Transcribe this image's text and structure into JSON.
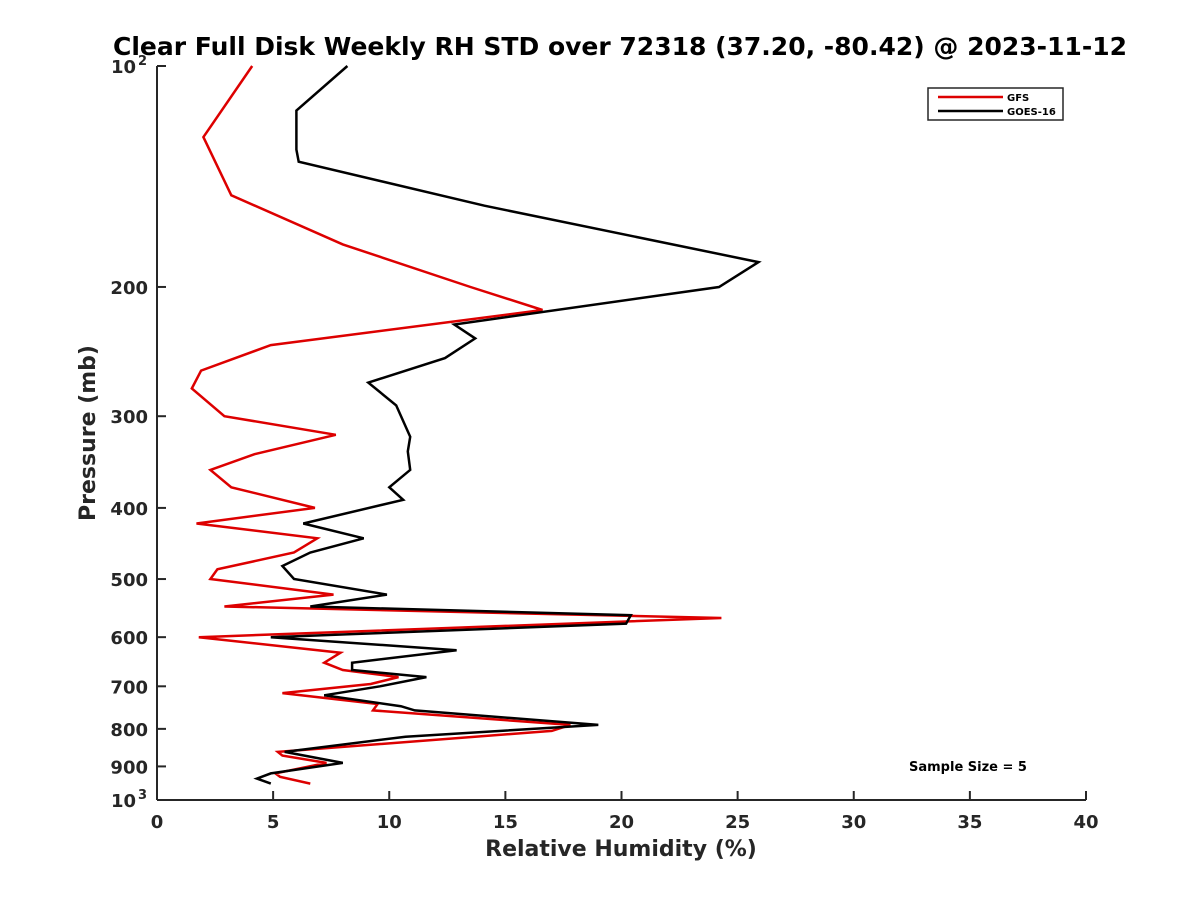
{
  "chart_data": {
    "type": "line",
    "title": "Clear Full Disk Weekly RH STD over 72318 (37.20, -80.42) @ 2023-11-12",
    "xlabel": "Relative Humidity (%)",
    "ylabel": "Pressure (mb)",
    "xlim": [
      0,
      40
    ],
    "ylim": [
      100,
      1000
    ],
    "yscale": "log",
    "yreversed": true,
    "grid": false,
    "legend_position": "top-right",
    "xticks": [
      0,
      5,
      10,
      15,
      20,
      25,
      30,
      35,
      40
    ],
    "xtick_labels": [
      "0",
      "5",
      "10",
      "15",
      "20",
      "25",
      "30",
      "35",
      "40"
    ],
    "yticks": [
      {
        "value": 100,
        "label": "10",
        "sup": "2"
      },
      {
        "value": 200,
        "label": "200",
        "sup": ""
      },
      {
        "value": 300,
        "label": "300",
        "sup": ""
      },
      {
        "value": 400,
        "label": "400",
        "sup": ""
      },
      {
        "value": 500,
        "label": "500",
        "sup": ""
      },
      {
        "value": 600,
        "label": "600",
        "sup": ""
      },
      {
        "value": 700,
        "label": "700",
        "sup": ""
      },
      {
        "value": 800,
        "label": "800",
        "sup": ""
      },
      {
        "value": 900,
        "label": "900",
        "sup": ""
      },
      {
        "value": 1000,
        "label": "10",
        "sup": "3"
      }
    ],
    "series": [
      {
        "name": "GFS",
        "color": "#dd0000",
        "points": [
          [
            4.1,
            100
          ],
          [
            2.0,
            125
          ],
          [
            3.2,
            150
          ],
          [
            8.0,
            175
          ],
          [
            13.5,
            200
          ],
          [
            16.6,
            215
          ],
          [
            4.9,
            240
          ],
          [
            1.9,
            260
          ],
          [
            1.5,
            275
          ],
          [
            2.9,
            300
          ],
          [
            7.7,
            318
          ],
          [
            4.2,
            338
          ],
          [
            2.3,
            355
          ],
          [
            3.2,
            375
          ],
          [
            6.8,
            400
          ],
          [
            1.7,
            420
          ],
          [
            6.9,
            440
          ],
          [
            5.9,
            460
          ],
          [
            2.6,
            485
          ],
          [
            2.3,
            500
          ],
          [
            7.6,
            525
          ],
          [
            2.9,
            545
          ],
          [
            24.3,
            565
          ],
          [
            1.8,
            600
          ],
          [
            7.9,
            630
          ],
          [
            7.2,
            650
          ],
          [
            8.0,
            665
          ],
          [
            10.4,
            680
          ],
          [
            9.2,
            695
          ],
          [
            5.4,
            715
          ],
          [
            9.5,
            740
          ],
          [
            9.3,
            755
          ],
          [
            17.8,
            790
          ],
          [
            17.0,
            805
          ],
          [
            5.2,
            860
          ],
          [
            5.4,
            870
          ],
          [
            7.3,
            890
          ],
          [
            5.1,
            920
          ],
          [
            5.3,
            930
          ],
          [
            6.6,
            950
          ]
        ]
      },
      {
        "name": "GOES-16",
        "color": "#000000",
        "points": [
          [
            8.2,
            100
          ],
          [
            6.0,
            115
          ],
          [
            6.0,
            130
          ],
          [
            6.1,
            135
          ],
          [
            14.1,
            155
          ],
          [
            25.9,
            185
          ],
          [
            24.2,
            200
          ],
          [
            12.8,
            225
          ],
          [
            13.7,
            235
          ],
          [
            12.4,
            250
          ],
          [
            9.1,
            270
          ],
          [
            10.3,
            290
          ],
          [
            10.9,
            320
          ],
          [
            10.8,
            335
          ],
          [
            10.9,
            355
          ],
          [
            10.0,
            375
          ],
          [
            10.6,
            390
          ],
          [
            6.3,
            420
          ],
          [
            8.9,
            440
          ],
          [
            6.6,
            460
          ],
          [
            5.4,
            480
          ],
          [
            5.9,
            500
          ],
          [
            9.9,
            525
          ],
          [
            6.6,
            545
          ],
          [
            20.4,
            560
          ],
          [
            20.2,
            575
          ],
          [
            4.9,
            600
          ],
          [
            12.9,
            625
          ],
          [
            8.4,
            650
          ],
          [
            8.4,
            665
          ],
          [
            11.6,
            680
          ],
          [
            9.6,
            700
          ],
          [
            7.2,
            720
          ],
          [
            10.5,
            745
          ],
          [
            11.1,
            755
          ],
          [
            19.0,
            790
          ],
          [
            10.7,
            820
          ],
          [
            5.5,
            860
          ],
          [
            8.0,
            890
          ],
          [
            4.9,
            920
          ],
          [
            4.3,
            935
          ],
          [
            4.9,
            950
          ]
        ]
      }
    ],
    "annotation": "Sample Size = 5"
  }
}
